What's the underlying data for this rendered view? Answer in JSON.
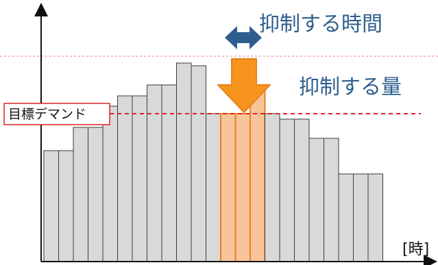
{
  "annotations": {
    "suppress_time": "抑制する時間",
    "suppress_amount": "抑制する量",
    "target_demand": "目標デマンド",
    "x_unit": "[時]"
  },
  "colors": {
    "bar_fill": "#d9d9d9",
    "bar_stroke": "#3a3a3a",
    "highlight_fill": "#f8c49a",
    "highlight_stroke": "#e8821e",
    "arrow_orange": "#f7941d",
    "arrow_blue": "#2f5d8f",
    "text_blue": "#2e5f8e",
    "target_line": "#e02020",
    "upper_line": "#f2aaaa",
    "label_border": "#e02020"
  },
  "chart_data": {
    "type": "bar",
    "series": [
      {
        "values": [
          162,
          162,
          196,
          196,
          227,
          242,
          242,
          258,
          258,
          290,
          286,
          216,
          216,
          216,
          255,
          216,
          208,
          208,
          180,
          180,
          128,
          128,
          128
        ]
      }
    ],
    "highlighted_indices": [
      12,
      13,
      14
    ],
    "target_demand_level": 216,
    "upper_level": 300,
    "ylim": [
      0,
      320
    ],
    "grid": false,
    "xlabel": "[時]"
  }
}
